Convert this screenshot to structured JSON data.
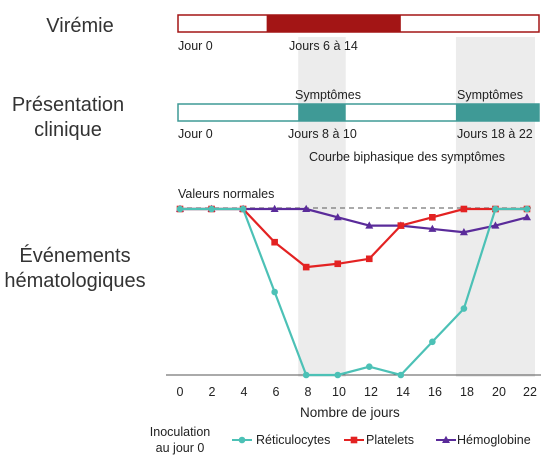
{
  "rows": {
    "viremia": "Virémie",
    "clinical_line1": "Présentation",
    "clinical_line2": "clinique",
    "hemato_line1": "Événements",
    "hemato_line2": "hématologiques"
  },
  "viremia_bar": {
    "start_day": 0,
    "end_day": 22,
    "highlight_start_day": 6,
    "highlight_end_day": 14,
    "label_start": "Jour 0",
    "label_highlight": "Jours 6 à 14",
    "color": "#a31515"
  },
  "clinical_bar": {
    "start_day": 0,
    "end_day": 22,
    "symptom_periods": [
      {
        "start_day": 8,
        "end_day": 10,
        "label": "Symptômes",
        "range_label": "Jours 8 à 10"
      },
      {
        "start_day": 18,
        "end_day": 22,
        "label": "Symptômes",
        "range_label": "Jours 18 à 22"
      }
    ],
    "label_start": "Jour 0",
    "note": "Courbe biphasique des symptômes",
    "color": "#3f9a96"
  },
  "normal_values_label": "Valeurs normales",
  "legend": {
    "inoculation_line1": "Inoculation",
    "inoculation_line2": "au jour 0"
  },
  "chart_data": {
    "type": "line",
    "x": [
      0,
      2,
      4,
      6,
      8,
      10,
      12,
      14,
      16,
      18,
      20,
      22
    ],
    "xlabel": "Nombre de jours",
    "shaded_x_ranges": [
      [
        8,
        10
      ],
      [
        18,
        22
      ]
    ],
    "series": [
      {
        "name": "Réticulocytes",
        "color": "#4cc1b6",
        "marker": "circle",
        "values": [
          100,
          100,
          100,
          50,
          0,
          0,
          5,
          0,
          20,
          40,
          100,
          100
        ]
      },
      {
        "name": "Platelets",
        "color": "#e32222",
        "marker": "square",
        "values": [
          100,
          100,
          100,
          80,
          65,
          67,
          70,
          90,
          95,
          100,
          100,
          100
        ]
      },
      {
        "name": "Hémoglobine",
        "color": "#5a2b9a",
        "marker": "triangle",
        "values": [
          100,
          100,
          100,
          100,
          100,
          95,
          90,
          90,
          88,
          86,
          90,
          95
        ]
      }
    ]
  }
}
